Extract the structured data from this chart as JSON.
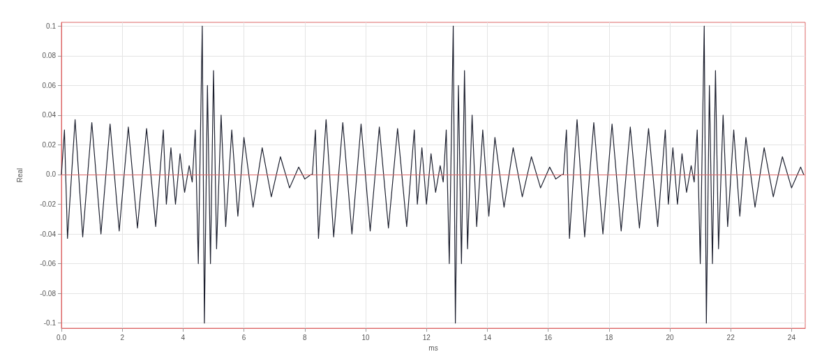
{
  "chart_data": {
    "type": "line",
    "xlabel": "ms",
    "ylabel": "Real",
    "grid": true,
    "marker": "none",
    "line_style": "solid",
    "ref_lines": [
      {
        "axis": "y",
        "value": 0,
        "color": "#dd6666"
      }
    ],
    "xlim": [
      0,
      24.45
    ],
    "ylim": [
      -0.1035,
      0.1025
    ],
    "xticks": [
      {
        "value": 0,
        "label": "0.0"
      },
      2,
      4,
      6,
      8,
      10,
      12,
      14,
      16,
      18,
      20,
      22,
      24
    ],
    "yticks": [
      -0.1,
      -0.08,
      -0.06,
      -0.04,
      -0.02,
      {
        "value": 0,
        "label": "0.0"
      },
      0.02,
      0.04,
      0.06,
      0.08,
      0.1
    ],
    "series": [
      {
        "color": "#1c1f2e",
        "x": [
          0.0,
          0.1,
          0.2,
          0.45,
          0.7,
          1.0,
          1.3,
          1.6,
          1.9,
          2.2,
          2.5,
          2.8,
          3.1,
          3.35,
          3.45,
          3.6,
          3.75,
          3.9,
          4.05,
          4.2,
          4.3,
          4.4,
          4.5,
          4.63,
          4.7,
          4.8,
          4.9,
          5.0,
          5.1,
          5.25,
          5.4,
          5.6,
          5.8,
          6.0,
          6.3,
          6.6,
          6.9,
          7.2,
          7.5,
          7.8,
          8.0,
          8.2,
          8.25,
          8.35,
          8.45,
          8.7,
          8.95,
          9.25,
          9.55,
          9.85,
          10.15,
          10.45,
          10.75,
          11.05,
          11.35,
          11.6,
          11.7,
          11.85,
          12.0,
          12.15,
          12.3,
          12.45,
          12.55,
          12.65,
          12.75,
          12.88,
          12.95,
          13.05,
          13.15,
          13.25,
          13.35,
          13.5,
          13.65,
          13.85,
          14.05,
          14.25,
          14.55,
          14.85,
          15.15,
          15.45,
          15.75,
          16.05,
          16.25,
          16.45,
          16.5,
          16.6,
          16.7,
          16.95,
          17.2,
          17.5,
          17.8,
          18.1,
          18.4,
          18.7,
          19.0,
          19.3,
          19.6,
          19.85,
          19.95,
          20.1,
          20.25,
          20.4,
          20.55,
          20.7,
          20.8,
          20.9,
          21.0,
          21.13,
          21.2,
          21.3,
          21.4,
          21.5,
          21.6,
          21.75,
          21.9,
          22.1,
          22.3,
          22.5,
          22.8,
          23.1,
          23.4,
          23.7,
          24.0,
          24.3,
          24.4
        ],
        "values": [
          0,
          0.03,
          -0.043,
          0.037,
          -0.042,
          0.035,
          -0.04,
          0.034,
          -0.038,
          0.032,
          -0.036,
          0.031,
          -0.035,
          0.03,
          -0.02,
          0.018,
          -0.02,
          0.014,
          -0.012,
          0.006,
          -0.005,
          0.03,
          -0.06,
          0.1,
          -0.1,
          0.06,
          -0.06,
          0.07,
          -0.05,
          0.04,
          -0.035,
          0.03,
          -0.028,
          0.025,
          -0.022,
          0.018,
          -0.015,
          0.012,
          -0.009,
          0.005,
          -0.003,
          0,
          0,
          0.03,
          -0.043,
          0.037,
          -0.042,
          0.035,
          -0.04,
          0.034,
          -0.038,
          0.032,
          -0.036,
          0.031,
          -0.035,
          0.03,
          -0.02,
          0.018,
          -0.02,
          0.014,
          -0.012,
          0.006,
          -0.005,
          0.03,
          -0.06,
          0.1,
          -0.1,
          0.06,
          -0.06,
          0.07,
          -0.05,
          0.04,
          -0.035,
          0.03,
          -0.028,
          0.025,
          -0.022,
          0.018,
          -0.015,
          0.012,
          -0.009,
          0.005,
          -0.003,
          0,
          0,
          0.03,
          -0.043,
          0.037,
          -0.042,
          0.035,
          -0.04,
          0.034,
          -0.038,
          0.032,
          -0.036,
          0.031,
          -0.035,
          0.03,
          -0.02,
          0.018,
          -0.02,
          0.014,
          -0.012,
          0.006,
          -0.005,
          0.03,
          -0.06,
          0.1,
          -0.1,
          0.06,
          -0.06,
          0.07,
          -0.05,
          0.04,
          -0.035,
          0.03,
          -0.028,
          0.025,
          -0.022,
          0.018,
          -0.015,
          0.012,
          -0.009,
          0.005,
          0
        ]
      }
    ]
  }
}
